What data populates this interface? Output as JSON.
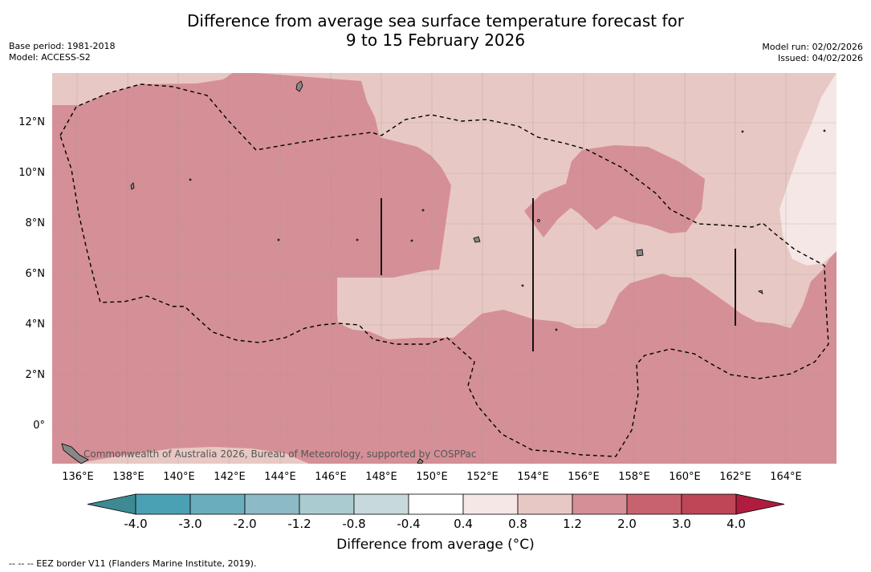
{
  "title": {
    "line1": "Difference from average sea surface temperature forecast for",
    "line2": "9 to 15 February 2026"
  },
  "meta_left": {
    "base_period": "Base period: 1981-2018",
    "model": "Model: ACCESS-S2"
  },
  "meta_right": {
    "model_run": "Model run: 02/02/2026",
    "issued": "Issued: 04/02/2026"
  },
  "map": {
    "y_ticks": [
      "12°N",
      "10°N",
      "8°N",
      "6°N",
      "4°N",
      "2°N",
      "0°"
    ],
    "x_ticks": [
      "136°E",
      "138°E",
      "140°E",
      "142°E",
      "144°E",
      "146°E",
      "148°E",
      "150°E",
      "152°E",
      "154°E",
      "156°E",
      "158°E",
      "160°E",
      "162°E",
      "164°E"
    ],
    "copyright": "Commonwealth of Australia 2026, Bureau of Meteorology, supported by COSPPac",
    "colors": {
      "anom_0_4_0_8": "#f4e7e5",
      "anom_0_8_1_2": "#e8c8c4",
      "anom_1_2_2_0": "#d58f97",
      "grid": "#999999",
      "land": "#888888"
    }
  },
  "colorbar": {
    "labels": [
      "-4.0",
      "-3.0",
      "-2.0",
      "-1.2",
      "-0.8",
      "-0.4",
      "0.4",
      "0.8",
      "1.2",
      "2.0",
      "3.0",
      "4.0"
    ],
    "colors": [
      "#3e8a93",
      "#4aa1b3",
      "#6aaebd",
      "#8cbac5",
      "#aaccd1",
      "#c8d9dc",
      "#ffffff",
      "#f4e7e5",
      "#e8c8c4",
      "#d58f97",
      "#c9626f",
      "#bd4657",
      "#b01c3e"
    ],
    "title": "Difference from average (°C)"
  },
  "footnote": "--  --  -- EEZ border V11 (Flanders Marine Institute, 2019)."
}
